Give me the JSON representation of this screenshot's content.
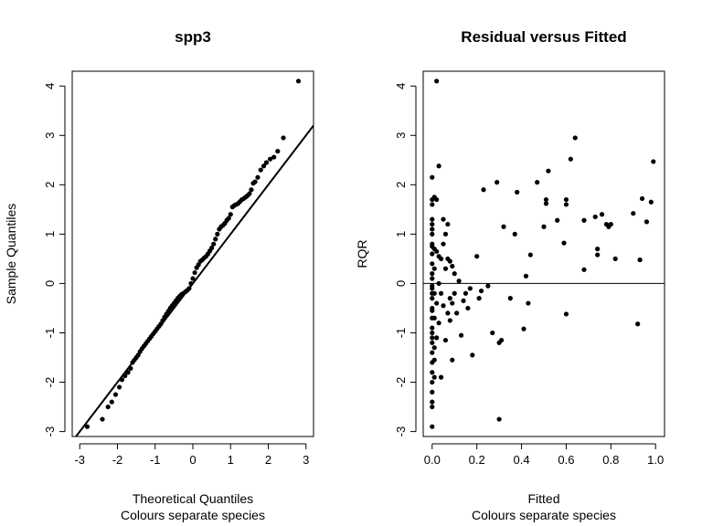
{
  "chart_data": [
    {
      "type": "scatter",
      "title": "spp3",
      "xlabel": "Theoretical Quantiles",
      "subtitle": "Colours separate species",
      "ylabel": "Sample Quantiles",
      "xlim": [
        -3.2,
        3.2
      ],
      "ylim": [
        -3.1,
        4.3
      ],
      "xticks": [
        -3,
        -2,
        -1,
        0,
        1,
        2,
        3
      ],
      "yticks": [
        -3,
        -2,
        -1,
        0,
        1,
        2,
        3,
        4
      ],
      "xtick_labels": [
        "-3",
        "-2",
        "-1",
        "0",
        "1",
        "2",
        "3"
      ],
      "ytick_labels": [
        "-3",
        "-2",
        "-1",
        "0",
        "1",
        "2",
        "3",
        "4"
      ],
      "reference_line": {
        "slope": 1,
        "intercept": 0
      },
      "grid": false,
      "x": [
        -2.8,
        -2.4,
        -2.25,
        -2.15,
        -2.05,
        -1.95,
        -1.88,
        -1.8,
        -1.72,
        -1.65,
        -1.6,
        -1.55,
        -1.5,
        -1.45,
        -1.4,
        -1.35,
        -1.3,
        -1.25,
        -1.2,
        -1.15,
        -1.1,
        -1.05,
        -1.0,
        -0.95,
        -0.9,
        -0.85,
        -0.8,
        -0.75,
        -0.7,
        -0.65,
        -0.6,
        -0.55,
        -0.5,
        -0.45,
        -0.4,
        -0.35,
        -0.3,
        -0.25,
        -0.2,
        -0.15,
        -0.1,
        -0.05,
        0.0,
        0.05,
        0.1,
        0.15,
        0.2,
        0.25,
        0.3,
        0.35,
        0.4,
        0.45,
        0.5,
        0.55,
        0.6,
        0.65,
        0.7,
        0.75,
        0.8,
        0.85,
        0.9,
        0.95,
        1.0,
        1.05,
        1.1,
        1.15,
        1.2,
        1.25,
        1.3,
        1.35,
        1.4,
        1.45,
        1.5,
        1.55,
        1.6,
        1.65,
        1.72,
        1.8,
        1.88,
        1.95,
        2.05,
        2.15,
        2.25,
        2.4,
        2.8
      ],
      "y": [
        -2.9,
        -2.75,
        -2.5,
        -2.4,
        -2.25,
        -2.1,
        -1.95,
        -1.87,
        -1.8,
        -1.72,
        -1.6,
        -1.55,
        -1.5,
        -1.45,
        -1.38,
        -1.32,
        -1.27,
        -1.22,
        -1.17,
        -1.12,
        -1.07,
        -1.02,
        -0.97,
        -0.92,
        -0.87,
        -0.82,
        -0.75,
        -0.68,
        -0.62,
        -0.56,
        -0.5,
        -0.45,
        -0.4,
        -0.35,
        -0.3,
        -0.26,
        -0.22,
        -0.2,
        -0.17,
        -0.14,
        -0.1,
        0.0,
        0.1,
        0.22,
        0.32,
        0.38,
        0.45,
        0.48,
        0.52,
        0.55,
        0.6,
        0.66,
        0.72,
        0.8,
        0.9,
        1.0,
        1.1,
        1.15,
        1.18,
        1.22,
        1.28,
        1.32,
        1.4,
        1.55,
        1.58,
        1.6,
        1.62,
        1.66,
        1.7,
        1.72,
        1.75,
        1.78,
        1.82,
        1.9,
        2.03,
        2.06,
        2.15,
        2.3,
        2.38,
        2.45,
        2.52,
        2.56,
        2.68,
        2.95,
        4.1
      ]
    },
    {
      "type": "scatter",
      "title": "Residual versus Fitted",
      "xlabel": "Fitted",
      "subtitle": "Colours separate species",
      "ylabel": "RQR",
      "xlim": [
        -0.04,
        1.04
      ],
      "ylim": [
        -3.1,
        4.3
      ],
      "xticks": [
        0.0,
        0.2,
        0.4,
        0.6,
        0.8,
        1.0
      ],
      "yticks": [
        -3,
        -2,
        -1,
        0,
        1,
        2,
        3,
        4
      ],
      "xtick_labels": [
        "0.0",
        "0.2",
        "0.4",
        "0.6",
        "0.8",
        "1.0"
      ],
      "ytick_labels": [
        "-3",
        "-2",
        "-1",
        "0",
        "1",
        "2",
        "3",
        "4"
      ],
      "reference_line": {
        "slope": 0,
        "intercept": 0
      },
      "grid": false,
      "x": [
        0.0,
        0.0,
        0.0,
        0.0,
        0.0,
        0.0,
        0.0,
        0.0,
        0.0,
        0.0,
        0.0,
        0.0,
        0.0,
        0.0,
        0.0,
        0.0,
        0.0,
        0.0,
        0.0,
        0.0,
        0.0,
        0.0,
        0.0,
        0.0,
        0.0,
        0.0,
        0.0,
        0.0,
        0.0,
        0.0,
        0.0,
        0.0,
        0.01,
        0.01,
        0.01,
        0.01,
        0.01,
        0.01,
        0.01,
        0.01,
        0.02,
        0.02,
        0.02,
        0.02,
        0.02,
        0.03,
        0.03,
        0.03,
        0.03,
        0.04,
        0.04,
        0.04,
        0.05,
        0.05,
        0.05,
        0.06,
        0.06,
        0.06,
        0.07,
        0.07,
        0.07,
        0.08,
        0.08,
        0.08,
        0.09,
        0.09,
        0.09,
        0.1,
        0.1,
        0.11,
        0.12,
        0.13,
        0.14,
        0.15,
        0.16,
        0.17,
        0.18,
        0.2,
        0.21,
        0.22,
        0.23,
        0.25,
        0.27,
        0.29,
        0.3,
        0.3,
        0.31,
        0.32,
        0.35,
        0.37,
        0.38,
        0.41,
        0.42,
        0.43,
        0.44,
        0.47,
        0.5,
        0.51,
        0.51,
        0.52,
        0.56,
        0.59,
        0.6,
        0.6,
        0.6,
        0.62,
        0.64,
        0.68,
        0.68,
        0.73,
        0.74,
        0.74,
        0.76,
        0.78,
        0.79,
        0.8,
        0.82,
        0.9,
        0.92,
        0.93,
        0.94,
        0.96,
        0.98,
        0.99
      ],
      "y": [
        2.15,
        1.7,
        1.6,
        1.3,
        1.2,
        1.1,
        1.0,
        0.8,
        0.6,
        0.4,
        0.2,
        0.1,
        -0.1,
        -0.2,
        -0.3,
        -0.5,
        -0.7,
        -0.9,
        -1.1,
        -1.2,
        -1.4,
        -1.6,
        -1.8,
        -2.0,
        -2.2,
        -2.4,
        -2.5,
        -2.9,
        0.75,
        -0.05,
        -0.55,
        -1.0,
        1.75,
        0.7,
        0.3,
        -0.2,
        -0.7,
        -1.3,
        -1.55,
        -1.9,
        4.1,
        1.7,
        0.65,
        -0.4,
        -1.1,
        2.38,
        0.55,
        0.0,
        -0.8,
        0.5,
        -0.2,
        -1.9,
        1.3,
        0.8,
        -0.45,
        1.0,
        0.3,
        -1.15,
        1.2,
        0.5,
        -0.6,
        0.45,
        -0.3,
        -0.75,
        0.35,
        -0.4,
        -1.55,
        0.2,
        -0.2,
        -0.6,
        0.05,
        -1.05,
        -0.35,
        -0.2,
        -0.5,
        -0.1,
        -1.45,
        0.55,
        -0.3,
        -0.15,
        1.9,
        -0.05,
        -1.0,
        2.05,
        -1.2,
        -2.75,
        -1.15,
        1.15,
        -0.3,
        1.0,
        1.85,
        -0.92,
        0.15,
        -0.4,
        0.58,
        2.05,
        1.15,
        1.62,
        1.7,
        2.28,
        1.28,
        0.82,
        1.7,
        1.6,
        -0.62,
        2.52,
        2.95,
        1.28,
        0.28,
        1.35,
        0.7,
        0.58,
        1.4,
        1.2,
        1.15,
        1.2,
        0.5,
        1.42,
        -0.82,
        0.48,
        1.72,
        1.25,
        1.65,
        2.47
      ]
    }
  ]
}
